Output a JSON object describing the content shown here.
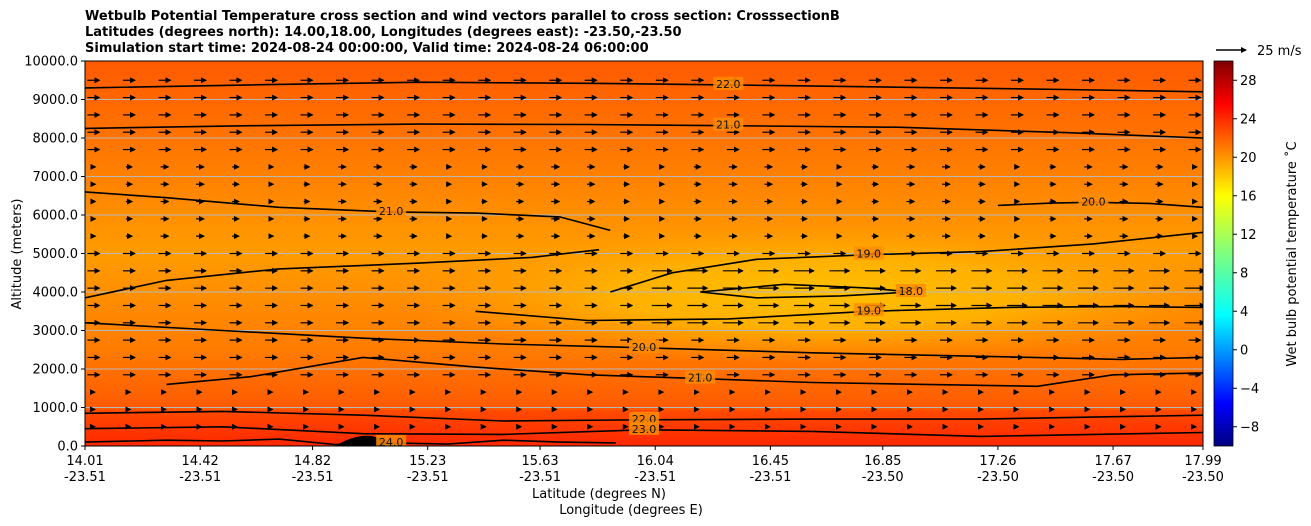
{
  "chart_data": {
    "type": "heatmap",
    "title_lines": [
      "Wetbulb Potential Temperature cross section and wind vectors parallel to cross section: CrosssectionB",
      "Latitudes (degrees north): 14.00,18.00, Longitudes (degrees east): -23.50,-23.50",
      "Simulation start time: 2024-08-24 00:00:00, Valid time: 2024-08-24 06:00:00"
    ],
    "ylabel": "Altitude (meters)",
    "xlabel": "Latitude (degrees N)",
    "xlabel2": "Longitude (degrees E)",
    "ylim": [
      0,
      10000
    ],
    "yticks": [
      "0.0",
      "1000.0",
      "2000.0",
      "3000.0",
      "4000.0",
      "5000.0",
      "6000.0",
      "7000.0",
      "8000.0",
      "9000.0",
      "10000.0"
    ],
    "xlim": [
      14.01,
      17.99
    ],
    "xticks": [
      {
        "lat": "14.01",
        "lon": "-23.51"
      },
      {
        "lat": "14.42",
        "lon": "-23.51"
      },
      {
        "lat": "14.82",
        "lon": "-23.51"
      },
      {
        "lat": "15.23",
        "lon": "-23.51"
      },
      {
        "lat": "15.63",
        "lon": "-23.51"
      },
      {
        "lat": "16.04",
        "lon": "-23.51"
      },
      {
        "lat": "16.45",
        "lon": "-23.51"
      },
      {
        "lat": "16.85",
        "lon": "-23.50"
      },
      {
        "lat": "17.26",
        "lon": "-23.50"
      },
      {
        "lat": "17.67",
        "lon": "-23.50"
      },
      {
        "lat": "17.99",
        "lon": "-23.50"
      }
    ],
    "colorbar": {
      "label": "Wet bulb potential temperature $^\\circ$C",
      "label_text": "Wet bulb potential temperature ˚C",
      "range": [
        -10,
        30
      ],
      "ticks": [
        "−8",
        "−4",
        "0",
        "4",
        "8",
        "12",
        "16",
        "20",
        "24",
        "28"
      ],
      "colormap": "jet"
    },
    "quiver_key": {
      "label": "25 m/s",
      "speed": 25
    },
    "contours": [
      {
        "value": 22.0,
        "label": "22.0",
        "x": [
          14.01,
          14.6,
          15.2,
          15.8,
          16.3,
          16.9,
          17.5,
          17.99
        ],
        "y": [
          9300,
          9380,
          9450,
          9420,
          9380,
          9320,
          9260,
          9200
        ]
      },
      {
        "value": 21.0,
        "label": "21.0",
        "x": [
          14.01,
          14.6,
          15.2,
          15.8,
          16.3,
          16.9,
          17.5,
          17.99
        ],
        "y": [
          8250,
          8320,
          8360,
          8350,
          8320,
          8280,
          8140,
          8000
        ]
      },
      {
        "value": 20.0,
        "label": "20.0",
        "x": [
          17.26,
          17.45,
          17.6,
          17.8,
          17.99
        ],
        "y": [
          6250,
          6310,
          6330,
          6300,
          6200
        ]
      },
      {
        "value": 21.0,
        "label": "21.0",
        "x": [
          14.01,
          14.3,
          14.7,
          15.1,
          15.4,
          15.7,
          15.88
        ],
        "y": [
          6600,
          6450,
          6200,
          6080,
          6050,
          5950,
          5600
        ]
      },
      {
        "value": 20.0,
        "label": "",
        "x": [
          14.01,
          14.3,
          14.7,
          15.2,
          15.6,
          15.84
        ],
        "y": [
          3850,
          4300,
          4600,
          4750,
          4900,
          5100
        ]
      },
      {
        "value": 19.0,
        "label": "19.0",
        "x": [
          15.88,
          16.1,
          16.4,
          16.8,
          17.2,
          17.6,
          17.99
        ],
        "y": [
          4000,
          4500,
          4850,
          4970,
          5050,
          5250,
          5550
        ]
      },
      {
        "value": 19.0,
        "label": "19.0",
        "x": [
          15.4,
          15.8,
          16.3,
          16.8,
          17.3,
          17.7,
          17.99
        ],
        "y": [
          3500,
          3260,
          3300,
          3500,
          3600,
          3620,
          3600
        ]
      },
      {
        "value": 18.0,
        "label": "18.0",
        "x": [
          16.2,
          16.5,
          16.8,
          16.95,
          16.7,
          16.4,
          16.2
        ],
        "y": [
          4000,
          4200,
          4100,
          4000,
          3900,
          3850,
          4000
        ]
      },
      {
        "value": 20.0,
        "label": "20.0",
        "x": [
          14.01,
          14.5,
          15.0,
          15.5,
          16.0,
          16.6,
          17.2,
          17.7,
          17.99
        ],
        "y": [
          3200,
          3000,
          2800,
          2650,
          2550,
          2420,
          2330,
          2250,
          2300
        ]
      },
      {
        "value": 21.0,
        "label": "21.0",
        "x": [
          14.3,
          14.6,
          15.0,
          15.4,
          15.8,
          16.2,
          16.6,
          17.0,
          17.4,
          17.67,
          17.99
        ],
        "y": [
          1600,
          1800,
          2300,
          2050,
          1850,
          1750,
          1650,
          1600,
          1550,
          1850,
          1900
        ]
      },
      {
        "value": 22.0,
        "label": "22.0",
        "x": [
          14.01,
          14.5,
          15.0,
          15.5,
          16.0,
          16.6,
          17.2,
          17.6,
          17.99
        ],
        "y": [
          850,
          900,
          800,
          650,
          680,
          700,
          700,
          750,
          800
        ]
      },
      {
        "value": 23.0,
        "label": "23.0",
        "x": [
          14.01,
          14.5,
          15.0,
          15.5,
          16.0,
          16.6,
          17.2,
          17.6,
          17.99
        ],
        "y": [
          450,
          500,
          320,
          300,
          420,
          380,
          250,
          300,
          350
        ]
      },
      {
        "value": 24.0,
        "label": "24.0",
        "x": [
          14.01,
          14.3,
          14.5,
          14.7,
          14.9,
          15.1,
          15.3,
          15.5,
          15.7,
          15.9
        ],
        "y": [
          100,
          150,
          130,
          180,
          40,
          80,
          50,
          150,
          100,
          80
        ]
      }
    ],
    "field_summary": {
      "near_surface": "24.0",
      "mid_levels_4000m": "18.0",
      "upper_levels": "22.0"
    }
  }
}
